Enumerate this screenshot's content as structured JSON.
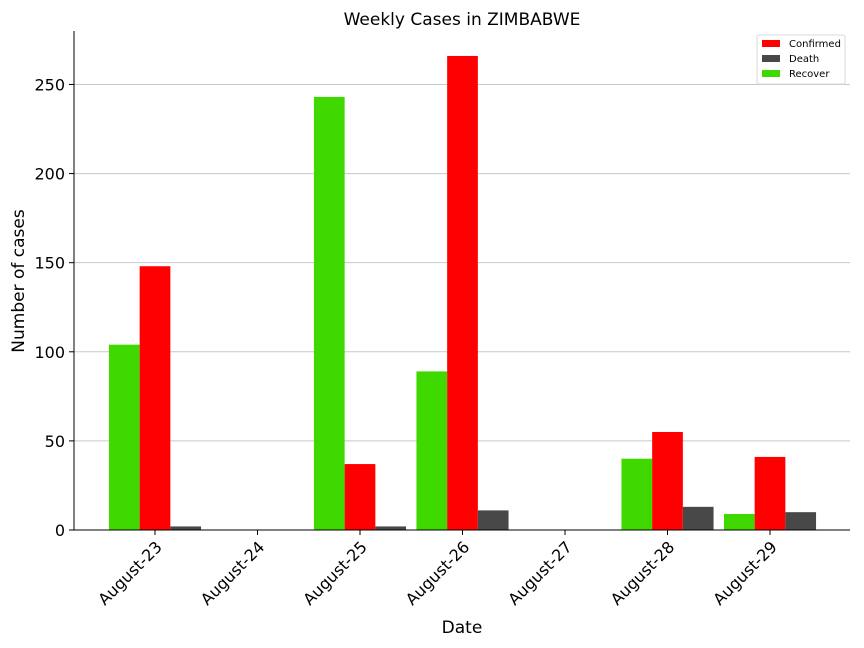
{
  "chart_data": {
    "type": "bar",
    "title": "Weekly Cases in ZIMBABWE",
    "xlabel": "Date",
    "ylabel": "Number of cases",
    "categories": [
      "August-23",
      "August-24",
      "August-25",
      "August-26",
      "August-27",
      "August-28",
      "August-29"
    ],
    "ylim": [
      0,
      280
    ],
    "yticks": [
      0,
      50,
      100,
      150,
      200,
      250
    ],
    "grid": "horizontal",
    "legend_position": "top-right",
    "series": [
      {
        "name": "Recover",
        "color": "#3fd900",
        "values": [
          104,
          0,
          243,
          89,
          0,
          40,
          9
        ]
      },
      {
        "name": "Confirmed",
        "color": "#ff0000",
        "values": [
          148,
          0,
          37,
          266,
          0,
          55,
          41
        ]
      },
      {
        "name": "Death",
        "color": "#484848",
        "values": [
          2,
          0,
          2,
          11,
          0,
          13,
          10
        ]
      }
    ],
    "legend_order": [
      "Confirmed",
      "Death",
      "Recover"
    ]
  }
}
